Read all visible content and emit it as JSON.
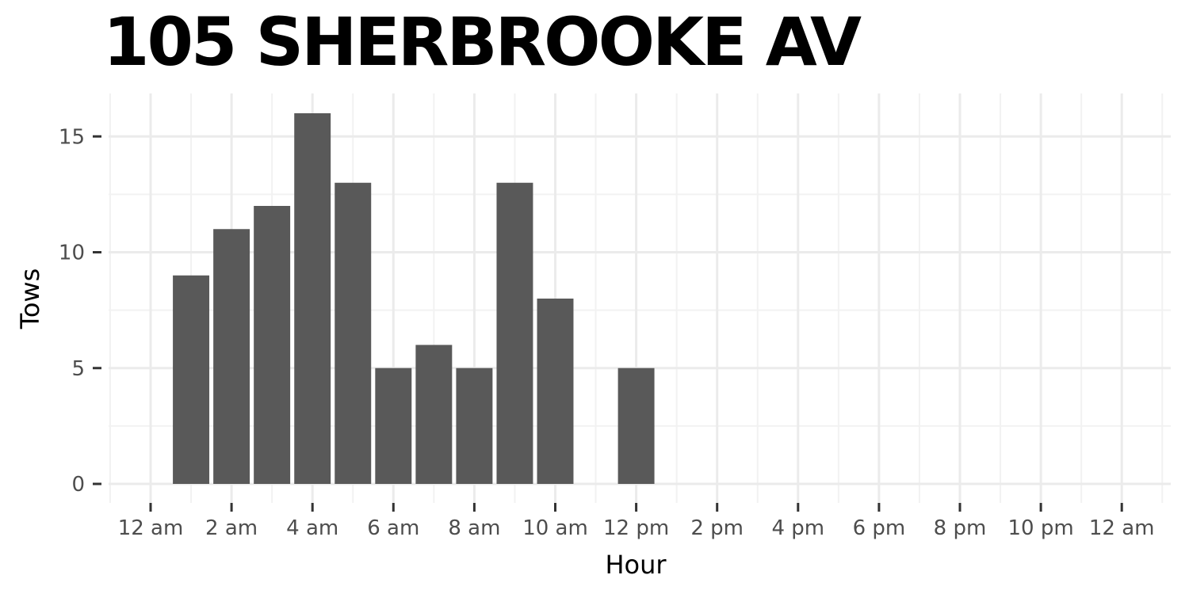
{
  "chart_data": {
    "type": "bar",
    "title": "105 SHERBROOKE AV",
    "xlabel": "Hour",
    "ylabel": "Tows",
    "x_tick_labels": [
      "12 am",
      "2 am",
      "4 am",
      "6 am",
      "8 am",
      "10 am",
      "12 pm",
      "2 pm",
      "4 pm",
      "6 pm",
      "8 pm",
      "10 pm",
      "12 am"
    ],
    "x_tick_hours": [
      0,
      2,
      4,
      6,
      8,
      10,
      12,
      14,
      16,
      18,
      20,
      22,
      24
    ],
    "y_ticks": [
      0,
      5,
      10,
      15
    ],
    "ylim": [
      0,
      16.5
    ],
    "xlim": [
      -1,
      25.5
    ],
    "grid": true,
    "bars": [
      {
        "hour": 1,
        "value": 9
      },
      {
        "hour": 2,
        "value": 11
      },
      {
        "hour": 3,
        "value": 12
      },
      {
        "hour": 4,
        "value": 16
      },
      {
        "hour": 5,
        "value": 13
      },
      {
        "hour": 6,
        "value": 5
      },
      {
        "hour": 7,
        "value": 6
      },
      {
        "hour": 8,
        "value": 5
      },
      {
        "hour": 9,
        "value": 13
      },
      {
        "hour": 10,
        "value": 8
      },
      {
        "hour": 12,
        "value": 5
      }
    ],
    "colors": {
      "bar": "#595959",
      "grid_major": "#ebebeb",
      "grid_minor": "#f2f2f2",
      "tick_text": "#4d4d4d",
      "tick_mark": "#333333"
    }
  }
}
